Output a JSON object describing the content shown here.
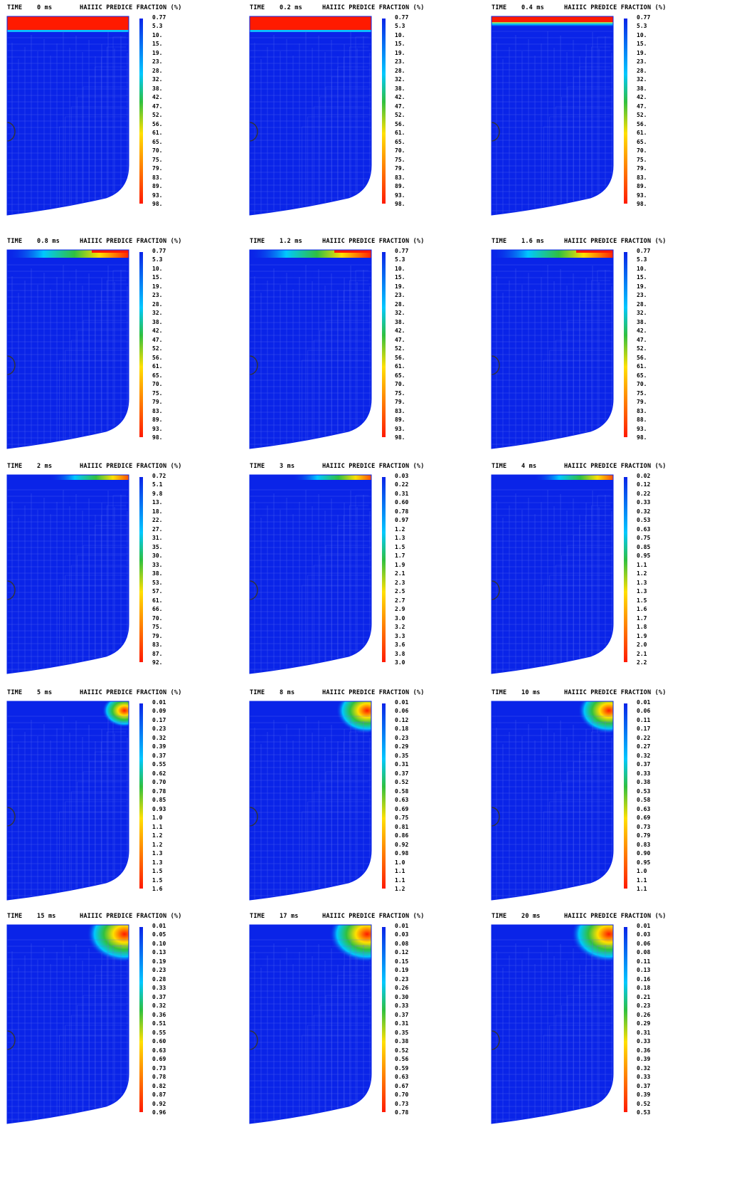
{
  "colors": {
    "mesh_blue": "#0a24e8",
    "mesh_line": "#5b6ef0",
    "red": "#ff1a00",
    "yellow": "#ffe000",
    "green": "#30c040",
    "cyan": "#00c8ff",
    "background": "#ffffff"
  },
  "panels": [
    {
      "time_label": "TIME",
      "time": "0 ms",
      "quantity": "HAIIIC PREDICE FRACTION (%)",
      "hot_band": "full",
      "hot_spot": 0,
      "legend": [
        "0.77",
        "5.3",
        "10.",
        "15.",
        "19.",
        "23.",
        "28.",
        "32.",
        "38.",
        "42.",
        "47.",
        "52.",
        "56.",
        "61.",
        "65.",
        "70.",
        "75.",
        "79.",
        "83.",
        "89.",
        "93.",
        "98."
      ]
    },
    {
      "time_label": "TIME",
      "time": "0.2 ms",
      "quantity": "HAIIIC PREDICE FRACTION (%)",
      "hot_band": "full",
      "hot_spot": 0,
      "legend": [
        "0.77",
        "5.3",
        "10.",
        "15.",
        "19.",
        "23.",
        "28.",
        "32.",
        "38.",
        "42.",
        "47.",
        "52.",
        "56.",
        "61.",
        "65.",
        "70.",
        "75.",
        "79.",
        "83.",
        "89.",
        "93.",
        "98."
      ]
    },
    {
      "time_label": "TIME",
      "time": "0.4 ms",
      "quantity": "HAIIIC PREDICE FRACTION (%)",
      "hot_band": "thin",
      "hot_spot": 0,
      "legend": [
        "0.77",
        "5.3",
        "10.",
        "15.",
        "19.",
        "23.",
        "28.",
        "32.",
        "38.",
        "42.",
        "47.",
        "52.",
        "56.",
        "61.",
        "65.",
        "70.",
        "75.",
        "79.",
        "83.",
        "89.",
        "93.",
        "98."
      ]
    },
    {
      "time_label": "TIME",
      "time": "0.8 ms",
      "quantity": "HAIIIC PREDICE FRACTION (%)",
      "hot_band": "right",
      "hot_spot": 0,
      "legend": [
        "0.77",
        "5.3",
        "10.",
        "15.",
        "19.",
        "23.",
        "28.",
        "32.",
        "38.",
        "42.",
        "47.",
        "52.",
        "56.",
        "61.",
        "65.",
        "70.",
        "75.",
        "79.",
        "83.",
        "89.",
        "93.",
        "98."
      ]
    },
    {
      "time_label": "TIME",
      "time": "1.2 ms",
      "quantity": "HAIIIC PREDICE FRACTION (%)",
      "hot_band": "right",
      "hot_spot": 0,
      "legend": [
        "0.77",
        "5.3",
        "10.",
        "15.",
        "19.",
        "23.",
        "28.",
        "32.",
        "38.",
        "42.",
        "47.",
        "52.",
        "56.",
        "61.",
        "65.",
        "70.",
        "75.",
        "79.",
        "83.",
        "89.",
        "93.",
        "98."
      ]
    },
    {
      "time_label": "TIME",
      "time": "1.6 ms",
      "quantity": "HAIIIC PREDICE FRACTION (%)",
      "hot_band": "right",
      "hot_spot": 0,
      "legend": [
        "0.77",
        "5.3",
        "10.",
        "15.",
        "19.",
        "23.",
        "28.",
        "32.",
        "38.",
        "42.",
        "47.",
        "52.",
        "56.",
        "61.",
        "65.",
        "70.",
        "75.",
        "79.",
        "83.",
        "88.",
        "93.",
        "98."
      ]
    },
    {
      "time_label": "TIME",
      "time": "2 ms",
      "quantity": "HAIIIC PREDICE FRACTION (%)",
      "hot_band": "corner",
      "hot_spot": 0,
      "legend": [
        "0.72",
        "5.1",
        "9.8",
        "13.",
        "18.",
        "22.",
        "27.",
        "31.",
        "35.",
        "30.",
        "33.",
        "38.",
        "53.",
        "57.",
        "61.",
        "66.",
        "70.",
        "75.",
        "79.",
        "83.",
        "87.",
        "92."
      ]
    },
    {
      "time_label": "TIME",
      "time": "3 ms",
      "quantity": "HAIIIC PREDICE FRACTION (%)",
      "hot_band": "corner",
      "hot_spot": 0,
      "legend": [
        "0.03",
        "0.22",
        "0.31",
        "0.60",
        "0.78",
        "0.97",
        "1.2",
        "1.3",
        "1.5",
        "1.7",
        "1.9",
        "2.1",
        "2.3",
        "2.5",
        "2.7",
        "2.9",
        "3.0",
        "3.2",
        "3.3",
        "3.6",
        "3.8",
        "3.0"
      ]
    },
    {
      "time_label": "TIME",
      "time": "4 ms",
      "quantity": "HAIIIC PREDICE FRACTION (%)",
      "hot_band": "corner",
      "hot_spot": 0,
      "legend": [
        "0.02",
        "0.12",
        "0.22",
        "0.33",
        "0.32",
        "0.53",
        "0.63",
        "0.75",
        "0.85",
        "0.95",
        "1.1",
        "1.2",
        "1.3",
        "1.3",
        "1.5",
        "1.6",
        "1.7",
        "1.8",
        "1.9",
        "2.0",
        "2.1",
        "2.2"
      ]
    },
    {
      "time_label": "TIME",
      "time": "5 ms",
      "quantity": "HAIIIC PREDICE FRACTION (%)",
      "hot_band": "none",
      "hot_spot": 1,
      "legend": [
        "0.01",
        "0.09",
        "0.17",
        "0.23",
        "0.32",
        "0.39",
        "0.37",
        "0.55",
        "0.62",
        "0.70",
        "0.78",
        "0.85",
        "0.93",
        "1.0",
        "1.1",
        "1.2",
        "1.2",
        "1.3",
        "1.3",
        "1.5",
        "1.5",
        "1.6"
      ]
    },
    {
      "time_label": "TIME",
      "time": "8 ms",
      "quantity": "HAIIIC PREDICE FRACTION (%)",
      "hot_band": "none",
      "hot_spot": 2,
      "legend": [
        "0.01",
        "0.06",
        "0.12",
        "0.18",
        "0.23",
        "0.29",
        "0.35",
        "0.31",
        "0.37",
        "0.52",
        "0.58",
        "0.63",
        "0.69",
        "0.75",
        "0.81",
        "0.86",
        "0.92",
        "0.98",
        "1.0",
        "1.1",
        "1.1",
        "1.2"
      ]
    },
    {
      "time_label": "TIME",
      "time": "10 ms",
      "quantity": "HAIIIC PREDICE FRACTION (%)",
      "hot_band": "none",
      "hot_spot": 2,
      "legend": [
        "0.01",
        "0.06",
        "0.11",
        "0.17",
        "0.22",
        "0.27",
        "0.32",
        "0.37",
        "0.33",
        "0.38",
        "0.53",
        "0.58",
        "0.63",
        "0.69",
        "0.73",
        "0.79",
        "0.83",
        "0.90",
        "0.95",
        "1.0",
        "1.1",
        "1.1"
      ]
    },
    {
      "time_label": "TIME",
      "time": "15 ms",
      "quantity": "HAIIIC PREDICE FRACTION (%)",
      "hot_band": "none",
      "hot_spot": 3,
      "legend": [
        "0.01",
        "0.05",
        "0.10",
        "0.13",
        "0.19",
        "0.23",
        "0.28",
        "0.33",
        "0.37",
        "0.32",
        "0.36",
        "0.51",
        "0.55",
        "0.60",
        "0.63",
        "0.69",
        "0.73",
        "0.78",
        "0.82",
        "0.87",
        "0.92",
        "0.96"
      ]
    },
    {
      "time_label": "TIME",
      "time": "17 ms",
      "quantity": "HAIIIC PREDICE FRACTION (%)",
      "hot_band": "none",
      "hot_spot": 3,
      "legend": [
        "0.01",
        "0.03",
        "0.08",
        "0.12",
        "0.15",
        "0.19",
        "0.23",
        "0.26",
        "0.30",
        "0.33",
        "0.37",
        "0.31",
        "0.35",
        "0.38",
        "0.52",
        "0.56",
        "0.59",
        "0.63",
        "0.67",
        "0.70",
        "0.73",
        "0.78"
      ]
    },
    {
      "time_label": "TIME",
      "time": "20 ms",
      "quantity": "HAIIIC PREDICE FRACTION (%)",
      "hot_band": "none",
      "hot_spot": 3,
      "legend": [
        "0.01",
        "0.03",
        "0.06",
        "0.08",
        "0.11",
        "0.13",
        "0.16",
        "0.18",
        "0.21",
        "0.23",
        "0.26",
        "0.29",
        "0.31",
        "0.33",
        "0.36",
        "0.39",
        "0.32",
        "0.33",
        "0.37",
        "0.39",
        "0.52",
        "0.53"
      ]
    }
  ]
}
